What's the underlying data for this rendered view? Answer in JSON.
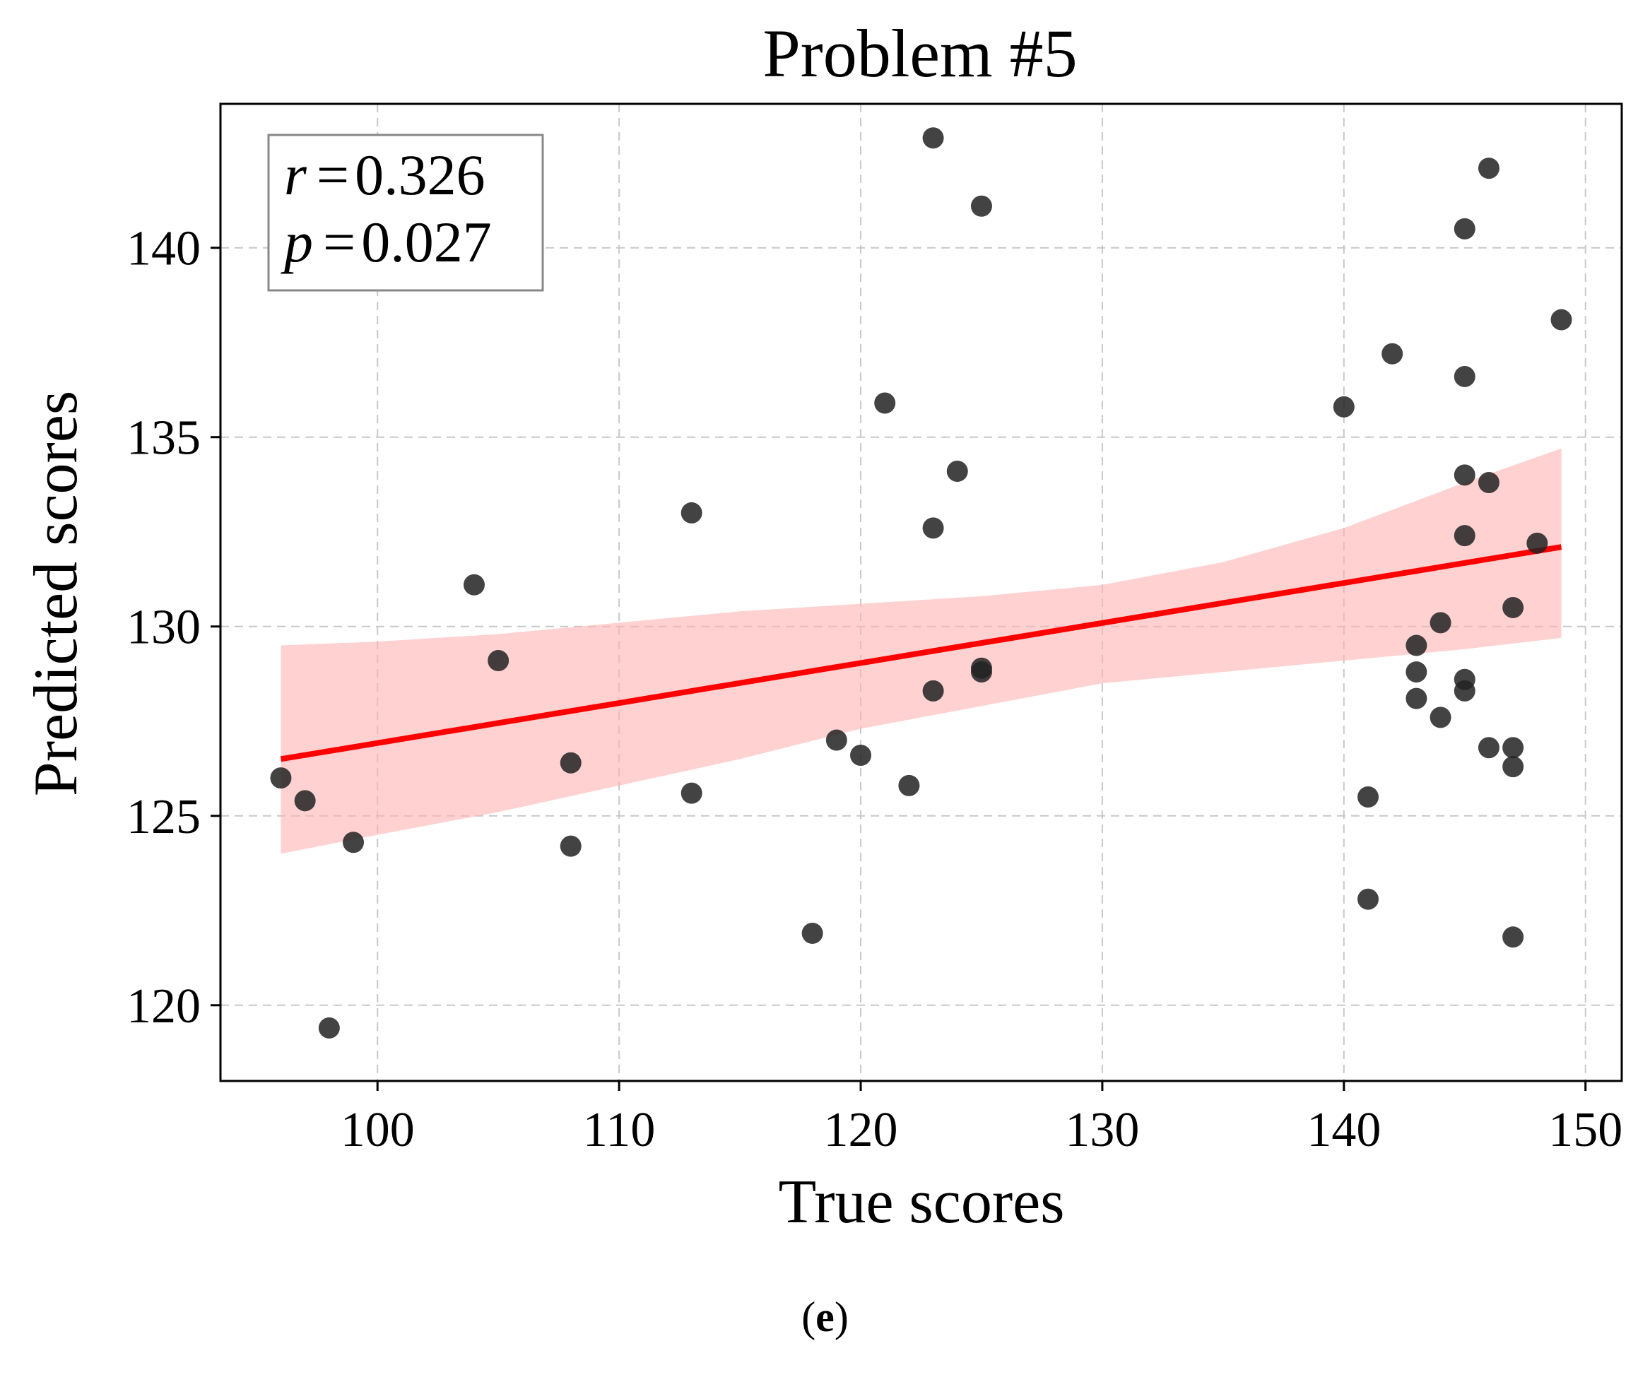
{
  "chart_data": {
    "type": "scatter",
    "title": "Problem #5",
    "xlabel": "True scores",
    "ylabel": "Predicted scores",
    "xlim": [
      93.5,
      151.5
    ],
    "ylim": [
      118,
      143.8
    ],
    "xticks": [
      100,
      110,
      120,
      130,
      140,
      150
    ],
    "yticks": [
      120,
      125,
      130,
      135,
      140
    ],
    "grid": true,
    "annotation": {
      "r_label": "r",
      "r_value": "0.326",
      "p_label": "p",
      "p_value": "0.027",
      "placement": "top-left"
    },
    "points": [
      {
        "x": 96,
        "y": 126.0
      },
      {
        "x": 97,
        "y": 125.4
      },
      {
        "x": 98,
        "y": 119.4
      },
      {
        "x": 99,
        "y": 124.3
      },
      {
        "x": 104,
        "y": 131.1
      },
      {
        "x": 105,
        "y": 129.1
      },
      {
        "x": 108,
        "y": 126.4
      },
      {
        "x": 108,
        "y": 124.2
      },
      {
        "x": 113,
        "y": 133.0
      },
      {
        "x": 113,
        "y": 125.6
      },
      {
        "x": 118,
        "y": 121.9
      },
      {
        "x": 119,
        "y": 127.0
      },
      {
        "x": 120,
        "y": 126.6
      },
      {
        "x": 121,
        "y": 135.9
      },
      {
        "x": 122,
        "y": 125.8
      },
      {
        "x": 123,
        "y": 142.9
      },
      {
        "x": 123,
        "y": 132.6
      },
      {
        "x": 123,
        "y": 128.3
      },
      {
        "x": 124,
        "y": 134.1
      },
      {
        "x": 125,
        "y": 141.1
      },
      {
        "x": 125,
        "y": 128.9
      },
      {
        "x": 125,
        "y": 128.8
      },
      {
        "x": 140,
        "y": 135.8
      },
      {
        "x": 141,
        "y": 125.5
      },
      {
        "x": 141,
        "y": 122.8
      },
      {
        "x": 142,
        "y": 137.2
      },
      {
        "x": 143,
        "y": 129.5
      },
      {
        "x": 143,
        "y": 128.8
      },
      {
        "x": 143,
        "y": 128.1
      },
      {
        "x": 144,
        "y": 130.1
      },
      {
        "x": 144,
        "y": 127.6
      },
      {
        "x": 145,
        "y": 140.5
      },
      {
        "x": 145,
        "y": 136.6
      },
      {
        "x": 145,
        "y": 134.0
      },
      {
        "x": 145,
        "y": 132.4
      },
      {
        "x": 145,
        "y": 128.6
      },
      {
        "x": 145,
        "y": 128.3
      },
      {
        "x": 146,
        "y": 142.1
      },
      {
        "x": 146,
        "y": 133.8
      },
      {
        "x": 146,
        "y": 126.8
      },
      {
        "x": 147,
        "y": 130.5
      },
      {
        "x": 147,
        "y": 126.8
      },
      {
        "x": 147,
        "y": 126.3
      },
      {
        "x": 147,
        "y": 121.8
      },
      {
        "x": 148,
        "y": 132.2
      },
      {
        "x": 149,
        "y": 138.1
      }
    ],
    "regression": {
      "x": [
        96,
        149
      ],
      "y": [
        126.5,
        132.1
      ]
    },
    "confidence_band": {
      "x": [
        96,
        100,
        105,
        110,
        115,
        120,
        125,
        130,
        135,
        140,
        145,
        149
      ],
      "upper": [
        129.5,
        129.6,
        129.8,
        130.1,
        130.4,
        130.6,
        130.8,
        131.1,
        131.7,
        132.6,
        133.8,
        134.7
      ],
      "lower": [
        124.0,
        124.5,
        125.1,
        125.8,
        126.5,
        127.3,
        127.9,
        128.5,
        128.8,
        129.1,
        129.4,
        129.7
      ]
    },
    "colors": {
      "point": "#222222",
      "line": "#ff0000",
      "band": "#ffb3b3",
      "grid": "#c8c8c8"
    }
  },
  "caption": {
    "open": "(",
    "letter": "e",
    "close": ")"
  }
}
